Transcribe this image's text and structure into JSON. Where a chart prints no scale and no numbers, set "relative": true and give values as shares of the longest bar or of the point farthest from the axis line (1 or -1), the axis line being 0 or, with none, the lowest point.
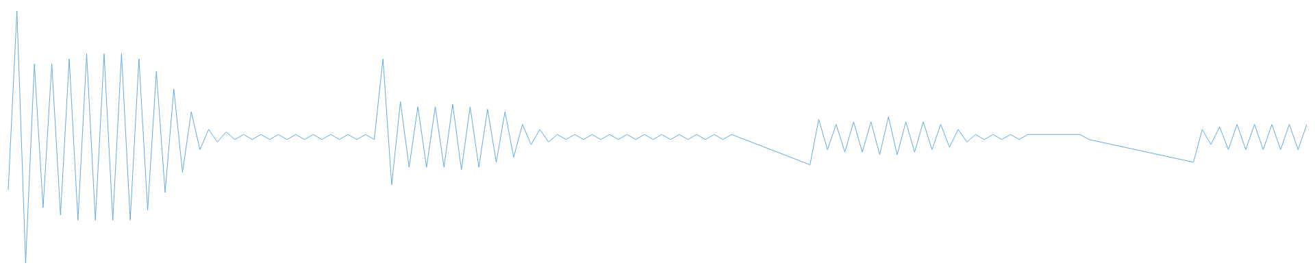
{
  "chart_data": {
    "type": "line",
    "relative": true,
    "marker": "none",
    "line_style": "solid",
    "grid": false,
    "legend": false,
    "categories": [
      null,
      null,
      null,
      null,
      null,
      null,
      null,
      null,
      null,
      null,
      null,
      null,
      null,
      null,
      null,
      null,
      null,
      null,
      null,
      null,
      null,
      null,
      null,
      null,
      null,
      null,
      null,
      null,
      null,
      null,
      null,
      null,
      null,
      null,
      null,
      null,
      null,
      null,
      null,
      null,
      null,
      null,
      null,
      null,
      null,
      null,
      null,
      null,
      null,
      null,
      null,
      null,
      null,
      null,
      null,
      null,
      null,
      null,
      null,
      null,
      null,
      null,
      null,
      null,
      null,
      null,
      null,
      null,
      null,
      null,
      null,
      null,
      null,
      null,
      null,
      null,
      null,
      null,
      null,
      null,
      null,
      null,
      null,
      null,
      null,
      null,
      null,
      null,
      null,
      null,
      null,
      null,
      null,
      null,
      null,
      null,
      null,
      null,
      null,
      null,
      null,
      null,
      null,
      null,
      null,
      null,
      null,
      null,
      null,
      null,
      null,
      null,
      null,
      null,
      null,
      null,
      null,
      null,
      null,
      null,
      null,
      null,
      null,
      null,
      null,
      null,
      null,
      null,
      null,
      null,
      null,
      null,
      null,
      null,
      null,
      null,
      null,
      null,
      null,
      null,
      null,
      null,
      null,
      null,
      null,
      null,
      null,
      null,
      null,
      null
    ],
    "series": [
      {
        "color": "#62ace2",
        "values": [
          0.29,
          1,
          0,
          0.79,
          0.22,
          0.79,
          0.19,
          0.81,
          0.17,
          0.83,
          0.17,
          0.83,
          0.17,
          0.83,
          0.17,
          0.81,
          0.21,
          0.76,
          0.28,
          0.69,
          0.36,
          0.6,
          0.45,
          0.53,
          0.48,
          0.52,
          0.49,
          0.51,
          0.49,
          0.51,
          0.49,
          0.51,
          0.49,
          0.51,
          0.49,
          0.51,
          0.49,
          0.51,
          0.49,
          0.51,
          0.49,
          0.51,
          0.49,
          0.81,
          0.31,
          0.64,
          0.38,
          0.62,
          0.38,
          0.62,
          0.38,
          0.63,
          0.37,
          0.62,
          0.38,
          0.61,
          0.4,
          0.6,
          0.42,
          0.55,
          0.47,
          0.53,
          0.48,
          0.51,
          0.49,
          0.51,
          0.49,
          0.51,
          0.49,
          0.51,
          0.49,
          0.51,
          0.49,
          0.51,
          0.49,
          0.51,
          0.49,
          0.51,
          0.49,
          0.51,
          0.49,
          0.51,
          0.49,
          0.51,
          null,
          null,
          null,
          null,
          null,
          null,
          null,
          null,
          0.39,
          0.57,
          0.45,
          0.55,
          0.44,
          0.56,
          0.44,
          0.56,
          0.43,
          0.58,
          0.43,
          0.56,
          0.44,
          0.56,
          0.45,
          0.55,
          0.46,
          0.53,
          0.48,
          0.51,
          0.49,
          0.51,
          0.49,
          0.51,
          0.49,
          0.51,
          null,
          null,
          null,
          null,
          null,
          0.51,
          0.49,
          null,
          null,
          null,
          null,
          null,
          null,
          null,
          null,
          null,
          null,
          null,
          0.4,
          0.53,
          0.47,
          0.54,
          0.45,
          0.55,
          0.45,
          0.55,
          0.45,
          0.55,
          0.45,
          0.55,
          0.45,
          0.55
        ]
      }
    ]
  }
}
